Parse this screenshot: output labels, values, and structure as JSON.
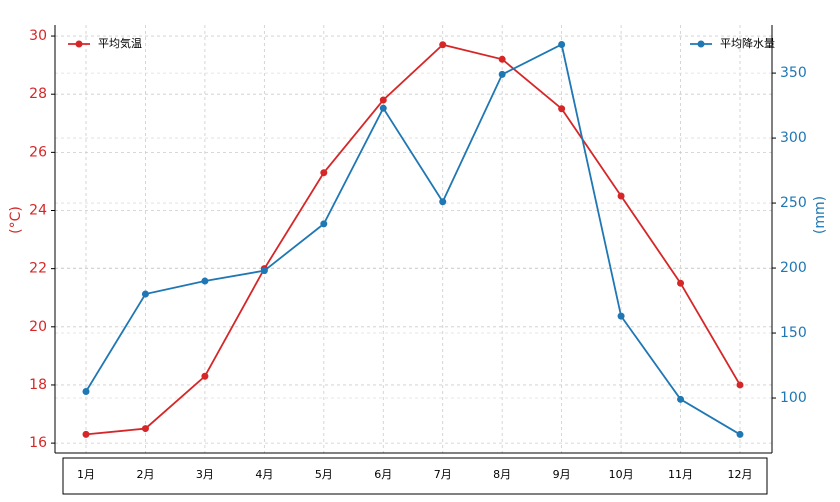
{
  "chart_data": {
    "type": "line",
    "categories": [
      "1月",
      "2月",
      "3月",
      "4月",
      "5月",
      "6月",
      "7月",
      "8月",
      "9月",
      "10月",
      "11月",
      "12月"
    ],
    "series": [
      {
        "name": "平均気温",
        "color": "#d62728",
        "axis": "y",
        "legend": "upper left",
        "values": [
          16.3,
          16.5,
          18.3,
          22.0,
          25.3,
          27.8,
          29.7,
          29.2,
          27.5,
          24.5,
          21.5,
          18.0
        ]
      },
      {
        "name": "平均降水量",
        "color": "#1f77b4",
        "axis": "y2",
        "legend": "upper right",
        "values": [
          105,
          180,
          190,
          198,
          234,
          323,
          251,
          349,
          372,
          163,
          99,
          72
        ]
      }
    ],
    "ylabel": "(°C)",
    "y2label": "(mm)",
    "ylim": [
      15.66,
      30.38
    ],
    "yticks": [
      16,
      18,
      20,
      22,
      24,
      26,
      28,
      30
    ],
    "y2lim": [
      57.7,
      387
    ],
    "y2ticks": [
      100,
      150,
      200,
      250,
      300,
      350
    ],
    "grid": true
  }
}
